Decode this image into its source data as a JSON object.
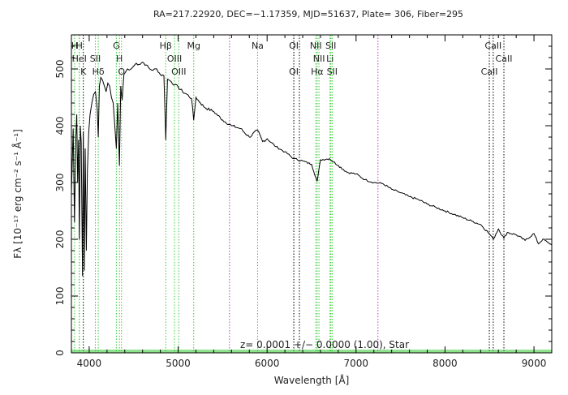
{
  "chart_data": {
    "type": "line",
    "title": "RA=217.22920, DEC=−1.17359, MJD=51637, Plate= 306, Fiber=295",
    "xlabel": "Wavelength [Å]",
    "ylabel": "Fλ [10⁻¹⁷ erg cm⁻² s⁻¹ Å⁻¹]",
    "xlim": [
      3800,
      9200
    ],
    "ylim": [
      0,
      560
    ],
    "xticks": [
      4000,
      5000,
      6000,
      7000,
      8000,
      9000
    ],
    "yticks": [
      0,
      100,
      200,
      300,
      400,
      500
    ],
    "annotation": "z= 0.0001 +/− 0.0000 (1.00), Star",
    "grid": false,
    "legend": "none",
    "colors": {
      "spectrum": "#000000",
      "green_line": "#33cc33",
      "magenta_line": "#cc33cc",
      "black_line": "#000000",
      "zero_band": "#33cc33"
    },
    "spectrum": {
      "name": "",
      "x": [
        3800,
        3820,
        3835,
        3850,
        3860,
        3870,
        3880,
        3889,
        3900,
        3910,
        3925,
        3934,
        3945,
        3955,
        3968,
        3980,
        3995,
        4010,
        4030,
        4050,
        4070,
        4090,
        4102,
        4115,
        4130,
        4150,
        4170,
        4190,
        4210,
        4230,
        4250,
        4270,
        4290,
        4305,
        4320,
        4340,
        4355,
        4370,
        4390,
        4410,
        4430,
        4450,
        4470,
        4500,
        4530,
        4560,
        4600,
        4640,
        4680,
        4720,
        4760,
        4800,
        4840,
        4861,
        4880,
        4920,
        4960,
        5000,
        5050,
        5100,
        5150,
        5175,
        5200,
        5250,
        5300,
        5400,
        5500,
        5600,
        5700,
        5800,
        5893,
        5950,
        6000,
        6100,
        6200,
        6300,
        6400,
        6500,
        6563,
        6600,
        6700,
        6800,
        6900,
        7000,
        7100,
        7200,
        7300,
        7400,
        7500,
        7600,
        7700,
        7800,
        7900,
        8000,
        8100,
        8200,
        8300,
        8400,
        8498,
        8542,
        8600,
        8662,
        8700,
        8800,
        8900,
        9000,
        9050,
        9100,
        9150,
        9200
      ],
      "y": [
        280,
        395,
        230,
        380,
        420,
        300,
        375,
        200,
        400,
        370,
        135,
        390,
        145,
        360,
        180,
        320,
        390,
        420,
        440,
        455,
        460,
        430,
        380,
        470,
        485,
        480,
        470,
        460,
        475,
        470,
        450,
        440,
        395,
        360,
        440,
        330,
        470,
        445,
        490,
        495,
        500,
        498,
        500,
        505,
        510,
        508,
        512,
        507,
        500,
        498,
        500,
        490,
        488,
        375,
        482,
        478,
        472,
        468,
        460,
        455,
        448,
        410,
        450,
        440,
        432,
        425,
        410,
        400,
        395,
        380,
        392,
        372,
        377,
        363,
        354,
        342,
        338,
        332,
        302,
        340,
        342,
        330,
        318,
        315,
        305,
        300,
        298,
        288,
        282,
        275,
        270,
        262,
        256,
        250,
        244,
        238,
        232,
        226,
        210,
        200,
        218,
        202,
        212,
        208,
        198,
        210,
        192,
        200,
        195,
        190
      ]
    },
    "lines": [
      {
        "label": "H",
        "x": 3835,
        "color": "green",
        "style": "dotted",
        "row": 0
      },
      {
        "label": "H",
        "x": 3889,
        "color": "green",
        "style": "dotted",
        "row": 0
      },
      {
        "label": "HeI",
        "x": 3889,
        "color": "green",
        "style": "dotted",
        "row": 1
      },
      {
        "label": "SII",
        "x": 4069,
        "color": "green",
        "style": "dotted",
        "row": 1
      },
      {
        "label": "K",
        "x": 3934,
        "color": "black",
        "style": "dotted",
        "row": 2
      },
      {
        "label": "Hδ",
        "x": 4102,
        "color": "green",
        "style": "dotted",
        "row": 2
      },
      {
        "label": "G",
        "x": 4305,
        "color": "green",
        "style": "dotted",
        "row": 0
      },
      {
        "label": "H",
        "x": 4340,
        "color": "green",
        "style": "dotted",
        "row": 1
      },
      {
        "label": "O",
        "x": 4363,
        "color": "green",
        "style": "dotted",
        "row": 2
      },
      {
        "label": "Hβ",
        "x": 4861,
        "color": "green",
        "style": "dotted",
        "row": 0
      },
      {
        "label": "OIII",
        "x": 4959,
        "color": "green",
        "style": "dotted",
        "row": 1
      },
      {
        "label": "OIII",
        "x": 5007,
        "color": "green",
        "style": "dotted",
        "row": 2
      },
      {
        "label": "Mg",
        "x": 5175,
        "color": "green",
        "style": "dotted",
        "row": 0
      },
      {
        "label": "",
        "x": 5577,
        "color": "magenta",
        "style": "dotted",
        "row": 0
      },
      {
        "label": "Na",
        "x": 5893,
        "color": "green",
        "style": "dotted",
        "row": 0
      },
      {
        "label": "OI",
        "x": 6300,
        "color": "magenta",
        "style": "dotted",
        "row": 0
      },
      {
        "label": "OI",
        "x": 6300,
        "color": "black",
        "style": "dotted",
        "row": 2
      },
      {
        "label": "",
        "x": 6363,
        "color": "black",
        "style": "dotted",
        "row": 0
      },
      {
        "label": "NII",
        "x": 6548,
        "color": "green",
        "style": "dotted",
        "row": 0
      },
      {
        "label": "SII",
        "x": 6716,
        "color": "green",
        "style": "dotted",
        "row": 0
      },
      {
        "label": "NII",
        "x": 6583,
        "color": "green",
        "style": "dotted",
        "row": 1
      },
      {
        "label": "Li",
        "x": 6707,
        "color": "green",
        "style": "dotted",
        "row": 1
      },
      {
        "label": "Hα",
        "x": 6563,
        "color": "green",
        "style": "dotted",
        "row": 2
      },
      {
        "label": "SII",
        "x": 6731,
        "color": "green",
        "style": "dotted",
        "row": 2
      },
      {
        "label": "",
        "x": 7246,
        "color": "magenta",
        "style": "dotted",
        "row": 0
      },
      {
        "label": "CaII",
        "x": 8542,
        "color": "black",
        "style": "dotted",
        "row": 0
      },
      {
        "label": "CaII",
        "x": 8662,
        "color": "black",
        "style": "dotted",
        "row": 1
      },
      {
        "label": "CaII",
        "x": 8498,
        "color": "black",
        "style": "dotted",
        "row": 2
      }
    ]
  }
}
